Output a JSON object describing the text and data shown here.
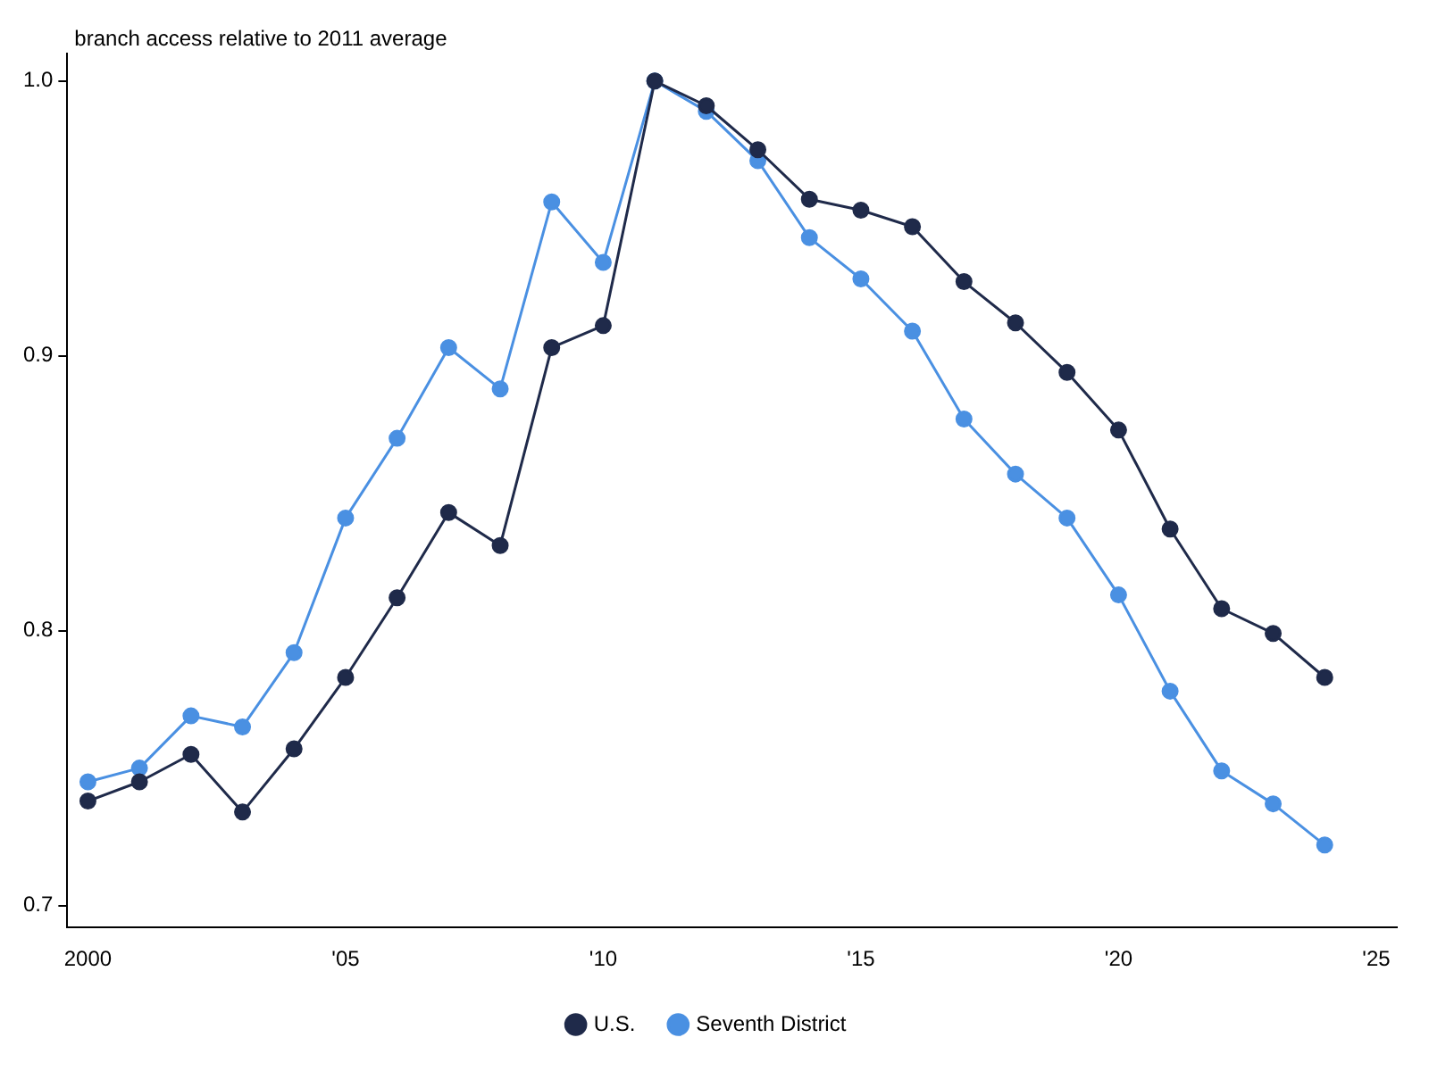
{
  "chart_data": {
    "type": "line",
    "ylabel": "branch access relative to 2011 average",
    "x": [
      2000,
      2001,
      2002,
      2003,
      2004,
      2005,
      2006,
      2007,
      2008,
      2009,
      2010,
      2011,
      2012,
      2013,
      2014,
      2015,
      2016,
      2017,
      2018,
      2019,
      2020,
      2021,
      2022,
      2023,
      2024
    ],
    "series": [
      {
        "name": "Seventh District",
        "color": "#4a90e2",
        "values": [
          0.745,
          0.75,
          0.769,
          0.765,
          0.792,
          0.841,
          0.87,
          0.903,
          0.888,
          0.956,
          0.934,
          1.0,
          0.989,
          0.971,
          0.943,
          0.928,
          0.909,
          0.877,
          0.857,
          0.841,
          0.813,
          0.778,
          0.749,
          0.737,
          0.722
        ]
      },
      {
        "name": "U.S.",
        "color": "#1f2a4a",
        "values": [
          0.738,
          0.745,
          0.755,
          0.734,
          0.757,
          0.783,
          0.812,
          0.843,
          0.831,
          0.903,
          0.911,
          1.0,
          0.991,
          0.975,
          0.957,
          0.953,
          0.947,
          0.927,
          0.912,
          0.894,
          0.873,
          0.837,
          0.808,
          0.799,
          0.783
        ]
      }
    ],
    "xlim": [
      1999.6,
      2025.4
    ],
    "xticks": [
      {
        "value": 2000,
        "label": "2000"
      },
      {
        "value": 2005,
        "label": "'05"
      },
      {
        "value": 2010,
        "label": "'10"
      },
      {
        "value": 2015,
        "label": "'15"
      },
      {
        "value": 2020,
        "label": "'20"
      },
      {
        "value": 2025,
        "label": "'25"
      }
    ],
    "ylim": [
      0.692,
      1.01
    ],
    "yticks": [
      {
        "value": 0.7,
        "label": "0.7"
      },
      {
        "value": 0.8,
        "label": "0.8"
      },
      {
        "value": 0.9,
        "label": "0.9"
      },
      {
        "value": 1.0,
        "label": "1.0"
      }
    ],
    "grid": false,
    "legend": "bottom",
    "marker": "circle",
    "line_style": "solid"
  }
}
